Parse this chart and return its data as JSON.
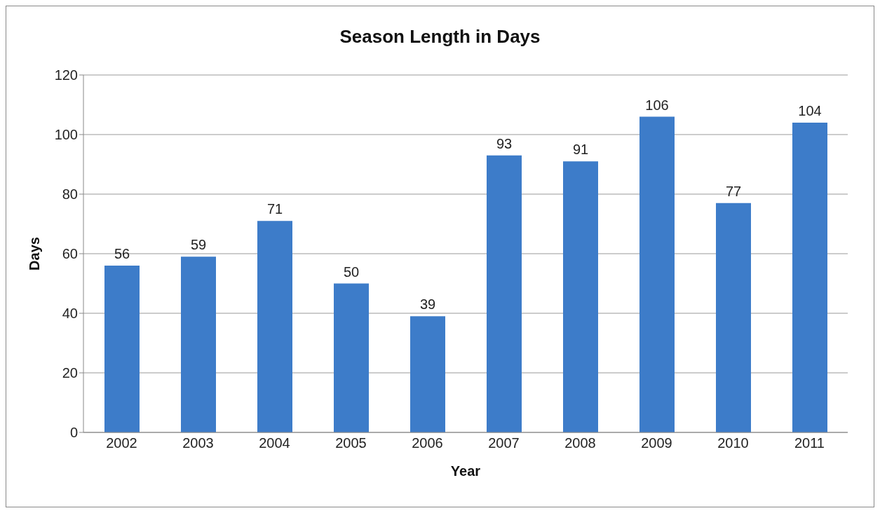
{
  "chart_data": {
    "type": "bar",
    "title": "Season Length in Days",
    "xlabel": "Year",
    "ylabel": "Days",
    "categories": [
      "2002",
      "2003",
      "2004",
      "2005",
      "2006",
      "2007",
      "2008",
      "2009",
      "2010",
      "2011"
    ],
    "values": [
      56,
      59,
      71,
      50,
      39,
      93,
      91,
      106,
      77,
      104
    ],
    "color": "#3d7cc9",
    "ylim": [
      0,
      120
    ],
    "yticks": [
      0,
      20,
      40,
      60,
      80,
      100,
      120
    ],
    "grid": "y",
    "data_labels": true
  }
}
